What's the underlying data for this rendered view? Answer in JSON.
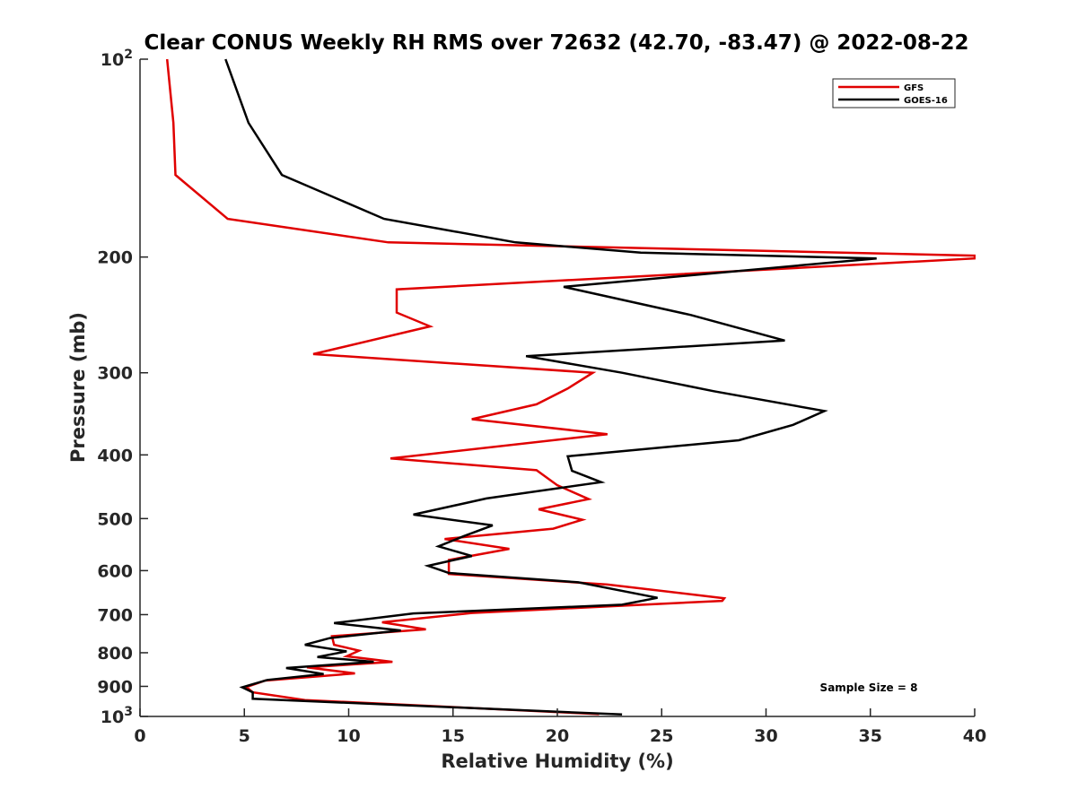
{
  "chart_data": {
    "type": "line",
    "title": "Clear CONUS Weekly RH RMS over 72632 (42.70, -83.47) @ 2022-08-22",
    "xlabel": "Relative Humidity (%)",
    "ylabel": "Pressure (mb)",
    "xlim": [
      0,
      40
    ],
    "ylim": [
      100,
      1000
    ],
    "y_scale": "log",
    "y_reversed": true,
    "x_ticks": [
      0,
      5,
      10,
      15,
      20,
      25,
      30,
      35,
      40
    ],
    "y_ticks": [
      {
        "value": 100,
        "label": "10",
        "sup": "2"
      },
      {
        "value": 200,
        "label": "200"
      },
      {
        "value": 300,
        "label": "300"
      },
      {
        "value": 400,
        "label": "400"
      },
      {
        "value": 500,
        "label": "500"
      },
      {
        "value": 600,
        "label": "600"
      },
      {
        "value": 700,
        "label": "700"
      },
      {
        "value": 800,
        "label": "800"
      },
      {
        "value": 900,
        "label": "900"
      },
      {
        "value": 1000,
        "label": "10",
        "sup": "3"
      }
    ],
    "grid": false,
    "legend_position": "top-right",
    "series": [
      {
        "name": "GFS",
        "color": "#e00000",
        "points": [
          [
            1.3,
            100
          ],
          [
            1.6,
            125
          ],
          [
            1.7,
            150
          ],
          [
            4.2,
            175
          ],
          [
            11.9,
            190
          ],
          [
            40.0,
            199
          ],
          [
            40.0,
            201
          ],
          [
            12.3,
            224
          ],
          [
            12.3,
            243
          ],
          [
            13.9,
            255
          ],
          [
            8.3,
            281
          ],
          [
            21.7,
            300
          ],
          [
            20.5,
            317
          ],
          [
            19.0,
            335
          ],
          [
            15.9,
            353
          ],
          [
            22.4,
            372
          ],
          [
            12.0,
            405
          ],
          [
            19.0,
            422
          ],
          [
            20.0,
            445
          ],
          [
            21.5,
            467
          ],
          [
            19.1,
            484
          ],
          [
            21.2,
            502
          ],
          [
            19.8,
            518
          ],
          [
            14.6,
            537
          ],
          [
            17.7,
            556
          ],
          [
            14.8,
            578
          ],
          [
            14.8,
            607
          ],
          [
            22.4,
            630
          ],
          [
            28.0,
            661
          ],
          [
            27.9,
            667
          ],
          [
            15.9,
            696
          ],
          [
            11.6,
            719
          ],
          [
            13.7,
            737
          ],
          [
            9.2,
            755
          ],
          [
            9.3,
            778
          ],
          [
            10.5,
            794
          ],
          [
            9.9,
            810
          ],
          [
            12.1,
            826
          ],
          [
            8.0,
            842
          ],
          [
            10.3,
            860
          ],
          [
            6.0,
            882
          ],
          [
            5.1,
            902
          ],
          [
            5.4,
            919
          ],
          [
            7.9,
            944
          ],
          [
            22.0,
            992
          ]
        ]
      },
      {
        "name": "GOES-16",
        "color": "#000000",
        "points": [
          [
            4.1,
            100
          ],
          [
            5.2,
            125
          ],
          [
            6.8,
            150
          ],
          [
            11.7,
            175
          ],
          [
            18.0,
            190
          ],
          [
            24.0,
            197
          ],
          [
            35.3,
            201
          ],
          [
            20.3,
            222
          ],
          [
            26.4,
            245
          ],
          [
            30.9,
            268
          ],
          [
            18.5,
            283
          ],
          [
            23.1,
            300
          ],
          [
            27.5,
            320
          ],
          [
            32.8,
            343
          ],
          [
            31.3,
            360
          ],
          [
            28.7,
            380
          ],
          [
            20.5,
            402
          ],
          [
            20.7,
            423
          ],
          [
            22.1,
            440
          ],
          [
            16.6,
            466
          ],
          [
            13.1,
            493
          ],
          [
            16.9,
            512
          ],
          [
            15.5,
            532
          ],
          [
            14.3,
            551
          ],
          [
            15.9,
            570
          ],
          [
            13.8,
            590
          ],
          [
            14.8,
            605
          ],
          [
            21.0,
            625
          ],
          [
            24.8,
            660
          ],
          [
            23.1,
            676
          ],
          [
            13.1,
            697
          ],
          [
            9.3,
            721
          ],
          [
            12.5,
            740
          ],
          [
            9.1,
            760
          ],
          [
            7.9,
            778
          ],
          [
            9.9,
            796
          ],
          [
            8.5,
            812
          ],
          [
            11.2,
            826
          ],
          [
            7.0,
            844
          ],
          [
            8.8,
            862
          ],
          [
            6.1,
            880
          ],
          [
            4.9,
            903
          ],
          [
            5.4,
            919
          ],
          [
            5.4,
            940
          ],
          [
            23.1,
            993
          ]
        ]
      }
    ],
    "legend": [
      {
        "label": "GFS",
        "color": "#e00000"
      },
      {
        "label": "GOES-16",
        "color": "#000000"
      }
    ],
    "annotation": "Sample Size = 8"
  }
}
